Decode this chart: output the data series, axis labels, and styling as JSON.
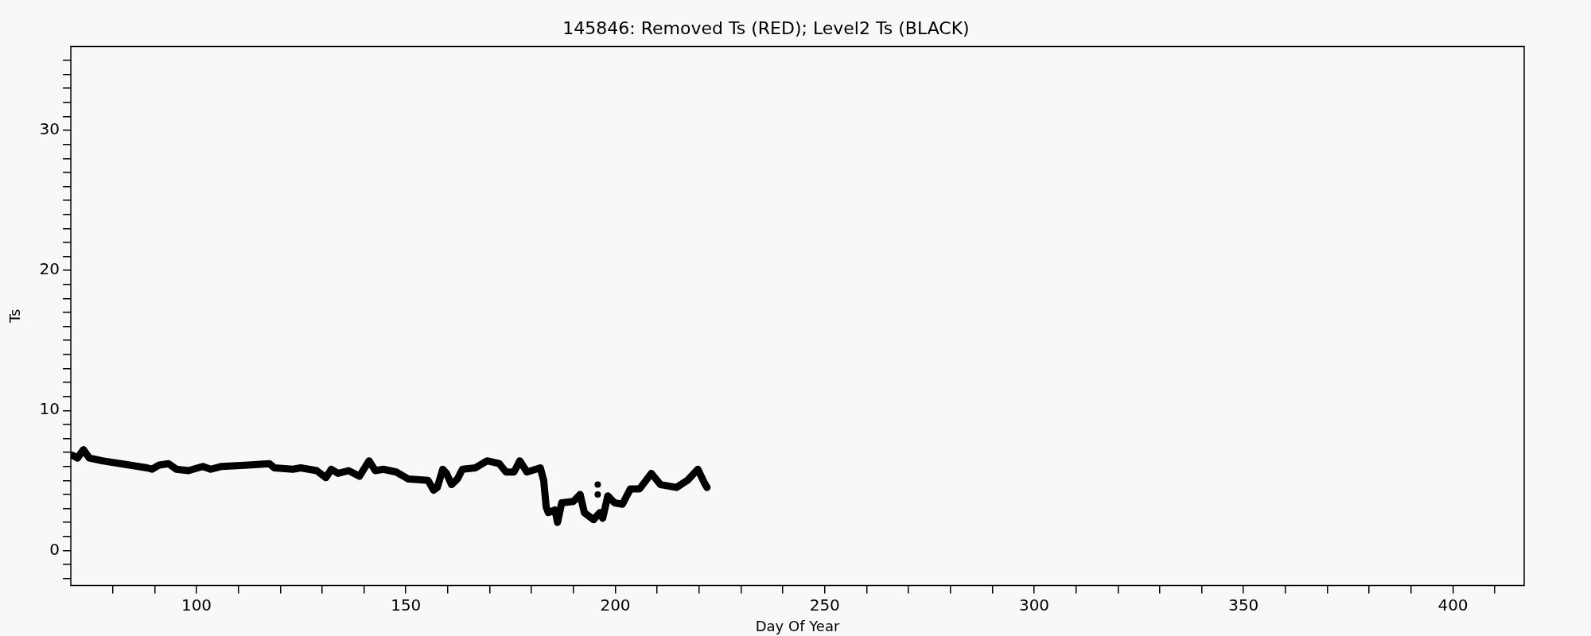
{
  "chart_data": {
    "type": "line",
    "title": "145846: Removed Ts (RED); Level2 Ts (BLACK)",
    "xlabel": "Day Of Year",
    "ylabel": "Ts",
    "xlim": [
      70,
      417
    ],
    "ylim": [
      -2.5,
      36
    ],
    "xticks": [
      {
        "value": 80,
        "label": null
      },
      {
        "value": 90,
        "label": null
      },
      100,
      {
        "value": 110,
        "label": null
      },
      {
        "value": 120,
        "label": null
      },
      {
        "value": 130,
        "label": null
      },
      {
        "value": 140,
        "label": null
      },
      150,
      {
        "value": 160,
        "label": null
      },
      {
        "value": 170,
        "label": null
      },
      {
        "value": 180,
        "label": null
      },
      {
        "value": 190,
        "label": null
      },
      200,
      {
        "value": 210,
        "label": null
      },
      {
        "value": 220,
        "label": null
      },
      {
        "value": 230,
        "label": null
      },
      {
        "value": 240,
        "label": null
      },
      250,
      {
        "value": 260,
        "label": null
      },
      {
        "value": 270,
        "label": null
      },
      {
        "value": 280,
        "label": null
      },
      {
        "value": 290,
        "label": null
      },
      300,
      {
        "value": 310,
        "label": null
      },
      {
        "value": 320,
        "label": null
      },
      {
        "value": 330,
        "label": null
      },
      {
        "value": 340,
        "label": null
      },
      350,
      {
        "value": 360,
        "label": null
      },
      {
        "value": 370,
        "label": null
      },
      {
        "value": 380,
        "label": null
      },
      {
        "value": 390,
        "label": null
      },
      400,
      {
        "value": 410,
        "label": null
      }
    ],
    "yticks": [
      {
        "value": -2,
        "label": null
      },
      {
        "value": -1,
        "label": null
      },
      0,
      {
        "value": 1,
        "label": null
      },
      {
        "value": 2,
        "label": null
      },
      {
        "value": 3,
        "label": null
      },
      {
        "value": 4,
        "label": null
      },
      {
        "value": 5,
        "label": null
      },
      {
        "value": 6,
        "label": null
      },
      {
        "value": 7,
        "label": null
      },
      {
        "value": 8,
        "label": null
      },
      {
        "value": 9,
        "label": null
      },
      10,
      {
        "value": 11,
        "label": null
      },
      {
        "value": 12,
        "label": null
      },
      {
        "value": 13,
        "label": null
      },
      {
        "value": 14,
        "label": null
      },
      {
        "value": 15,
        "label": null
      },
      {
        "value": 16,
        "label": null
      },
      {
        "value": 17,
        "label": null
      },
      {
        "value": 18,
        "label": null
      },
      {
        "value": 19,
        "label": null
      },
      20,
      {
        "value": 21,
        "label": null
      },
      {
        "value": 22,
        "label": null
      },
      {
        "value": 23,
        "label": null
      },
      {
        "value": 24,
        "label": null
      },
      {
        "value": 25,
        "label": null
      },
      {
        "value": 26,
        "label": null
      },
      {
        "value": 27,
        "label": null
      },
      {
        "value": 28,
        "label": null
      },
      {
        "value": 29,
        "label": null
      },
      30,
      {
        "value": 31,
        "label": null
      },
      {
        "value": 32,
        "label": null
      },
      {
        "value": 33,
        "label": null
      },
      {
        "value": 34,
        "label": null
      },
      {
        "value": 35,
        "label": null
      }
    ],
    "grid": false,
    "legend": false,
    "marker": "none",
    "line_style": "solid",
    "series": [
      {
        "type": "line",
        "color": "#000000",
        "x": [
          70.3,
          71.6,
          73.0,
          74.4,
          77.5,
          81.9,
          88.2,
          89.4,
          91.1,
          93.3,
          95.2,
          98.1,
          101.5,
          103.4,
          106.0,
          112.3,
          117.4,
          118.6,
          123.0,
          124.9,
          128.7,
          130.9,
          132.2,
          133.8,
          136.3,
          138.9,
          141.2,
          142.7,
          144.6,
          147.7,
          150.6,
          155.3,
          156.6,
          157.5,
          158.8,
          159.7,
          160.9,
          162.3,
          163.5,
          166.6,
          169.4,
          172.3,
          173.9,
          175.8,
          177.2,
          178.9,
          182.1,
          182.9,
          183.5,
          184.0,
          185.6,
          186.2,
          187.2,
          190.0,
          191.6,
          192.6,
          194.8,
          196.3,
          197.0,
          198.2,
          199.8,
          201.7,
          203.6,
          205.8,
          208.6,
          210.8,
          214.6,
          217.2,
          219.7,
          221.3,
          221.9
        ],
        "values": [
          6.8,
          6.6,
          7.2,
          6.6,
          6.4,
          6.2,
          5.9,
          5.8,
          6.1,
          6.2,
          5.8,
          5.7,
          6.0,
          5.8,
          6.0,
          6.1,
          6.2,
          5.9,
          5.8,
          5.9,
          5.7,
          5.2,
          5.8,
          5.5,
          5.7,
          5.3,
          6.4,
          5.7,
          5.8,
          5.6,
          5.1,
          5.0,
          4.3,
          4.5,
          5.8,
          5.5,
          4.7,
          5.1,
          5.8,
          5.9,
          6.4,
          6.2,
          5.6,
          5.6,
          6.4,
          5.6,
          5.9,
          5.0,
          3.1,
          2.7,
          2.9,
          2.0,
          3.4,
          3.5,
          4.0,
          2.7,
          2.2,
          2.7,
          2.3,
          3.9,
          3.4,
          3.3,
          4.4,
          4.4,
          5.5,
          4.7,
          4.5,
          5.0,
          5.8,
          4.8,
          4.5
        ]
      },
      {
        "type": "scatter",
        "color": "#000000",
        "marker": "circle",
        "x": [
          195.8,
          195.8
        ],
        "values": [
          4.7,
          4.0
        ]
      }
    ]
  }
}
